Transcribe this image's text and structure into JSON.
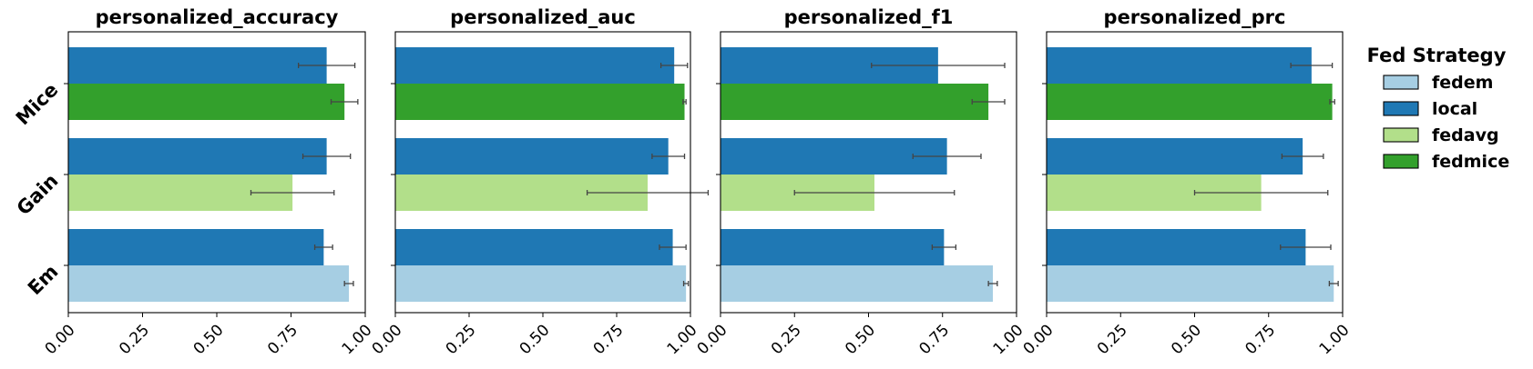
{
  "legend": {
    "title": "Fed Strategy",
    "entries": [
      {
        "key": "fedem",
        "label": "fedem",
        "color": "#a6cee3"
      },
      {
        "key": "local",
        "label": "local",
        "color": "#1f78b4"
      },
      {
        "key": "fedavg",
        "label": "fedavg",
        "color": "#b2df8a"
      },
      {
        "key": "fedmice",
        "label": "fedmice",
        "color": "#33a02c"
      }
    ]
  },
  "chart_data": [
    {
      "type": "bar",
      "orientation": "horizontal",
      "title": "personalized_accuracy",
      "categories": [
        "Mice",
        "Gain",
        "Em"
      ],
      "xlim": [
        0,
        1.0
      ],
      "xticks": [
        "0.00",
        "0.25",
        "0.50",
        "0.75",
        "1.00"
      ],
      "bars": [
        {
          "category": "Mice",
          "series": "local",
          "value": 0.87,
          "err": 0.095
        },
        {
          "category": "Mice",
          "series": "fedmice",
          "value": 0.93,
          "err": 0.045
        },
        {
          "category": "Gain",
          "series": "local",
          "value": 0.87,
          "err": 0.08
        },
        {
          "category": "Gain",
          "series": "fedavg",
          "value": 0.755,
          "err": 0.14
        },
        {
          "category": "Em",
          "series": "local",
          "value": 0.86,
          "err": 0.03
        },
        {
          "category": "Em",
          "series": "fedem",
          "value": 0.945,
          "err": 0.015
        }
      ]
    },
    {
      "type": "bar",
      "orientation": "horizontal",
      "title": "personalized_auc",
      "categories": [
        "Mice",
        "Gain",
        "Em"
      ],
      "xlim": [
        0,
        1.0
      ],
      "xticks": [
        "0.00",
        "0.25",
        "0.50",
        "0.75",
        "1.00"
      ],
      "bars": [
        {
          "category": "Mice",
          "series": "local",
          "value": 0.945,
          "err": 0.045
        },
        {
          "category": "Mice",
          "series": "fedmice",
          "value": 0.98,
          "err": 0.005
        },
        {
          "category": "Gain",
          "series": "local",
          "value": 0.925,
          "err": 0.055
        },
        {
          "category": "Gain",
          "series": "fedavg",
          "value": 0.855,
          "err": 0.205
        },
        {
          "category": "Em",
          "series": "local",
          "value": 0.94,
          "err": 0.045
        },
        {
          "category": "Em",
          "series": "fedem",
          "value": 0.985,
          "err": 0.008
        }
      ]
    },
    {
      "type": "bar",
      "orientation": "horizontal",
      "title": "personalized_f1",
      "categories": [
        "Mice",
        "Gain",
        "Em"
      ],
      "xlim": [
        0,
        1.0
      ],
      "xticks": [
        "0.00",
        "0.25",
        "0.50",
        "0.75",
        "1.00"
      ],
      "bars": [
        {
          "category": "Mice",
          "series": "local",
          "value": 0.735,
          "err": 0.225
        },
        {
          "category": "Mice",
          "series": "fedmice",
          "value": 0.905,
          "err": 0.055
        },
        {
          "category": "Gain",
          "series": "local",
          "value": 0.765,
          "err": 0.115
        },
        {
          "category": "Gain",
          "series": "fedavg",
          "value": 0.52,
          "err": 0.27
        },
        {
          "category": "Em",
          "series": "local",
          "value": 0.755,
          "err": 0.04
        },
        {
          "category": "Em",
          "series": "fedem",
          "value": 0.92,
          "err": 0.015
        }
      ]
    },
    {
      "type": "bar",
      "orientation": "horizontal",
      "title": "personalized_prc",
      "categories": [
        "Mice",
        "Gain",
        "Em"
      ],
      "xlim": [
        0,
        1.0
      ],
      "xticks": [
        "0.00",
        "0.25",
        "0.50",
        "0.75",
        "1.00"
      ],
      "bars": [
        {
          "category": "Mice",
          "series": "local",
          "value": 0.895,
          "err": 0.07
        },
        {
          "category": "Mice",
          "series": "fedmice",
          "value": 0.965,
          "err": 0.008
        },
        {
          "category": "Gain",
          "series": "local",
          "value": 0.865,
          "err": 0.07
        },
        {
          "category": "Gain",
          "series": "fedavg",
          "value": 0.725,
          "err": 0.225
        },
        {
          "category": "Em",
          "series": "local",
          "value": 0.875,
          "err": 0.085
        },
        {
          "category": "Em",
          "series": "fedem",
          "value": 0.97,
          "err": 0.015
        }
      ]
    }
  ]
}
